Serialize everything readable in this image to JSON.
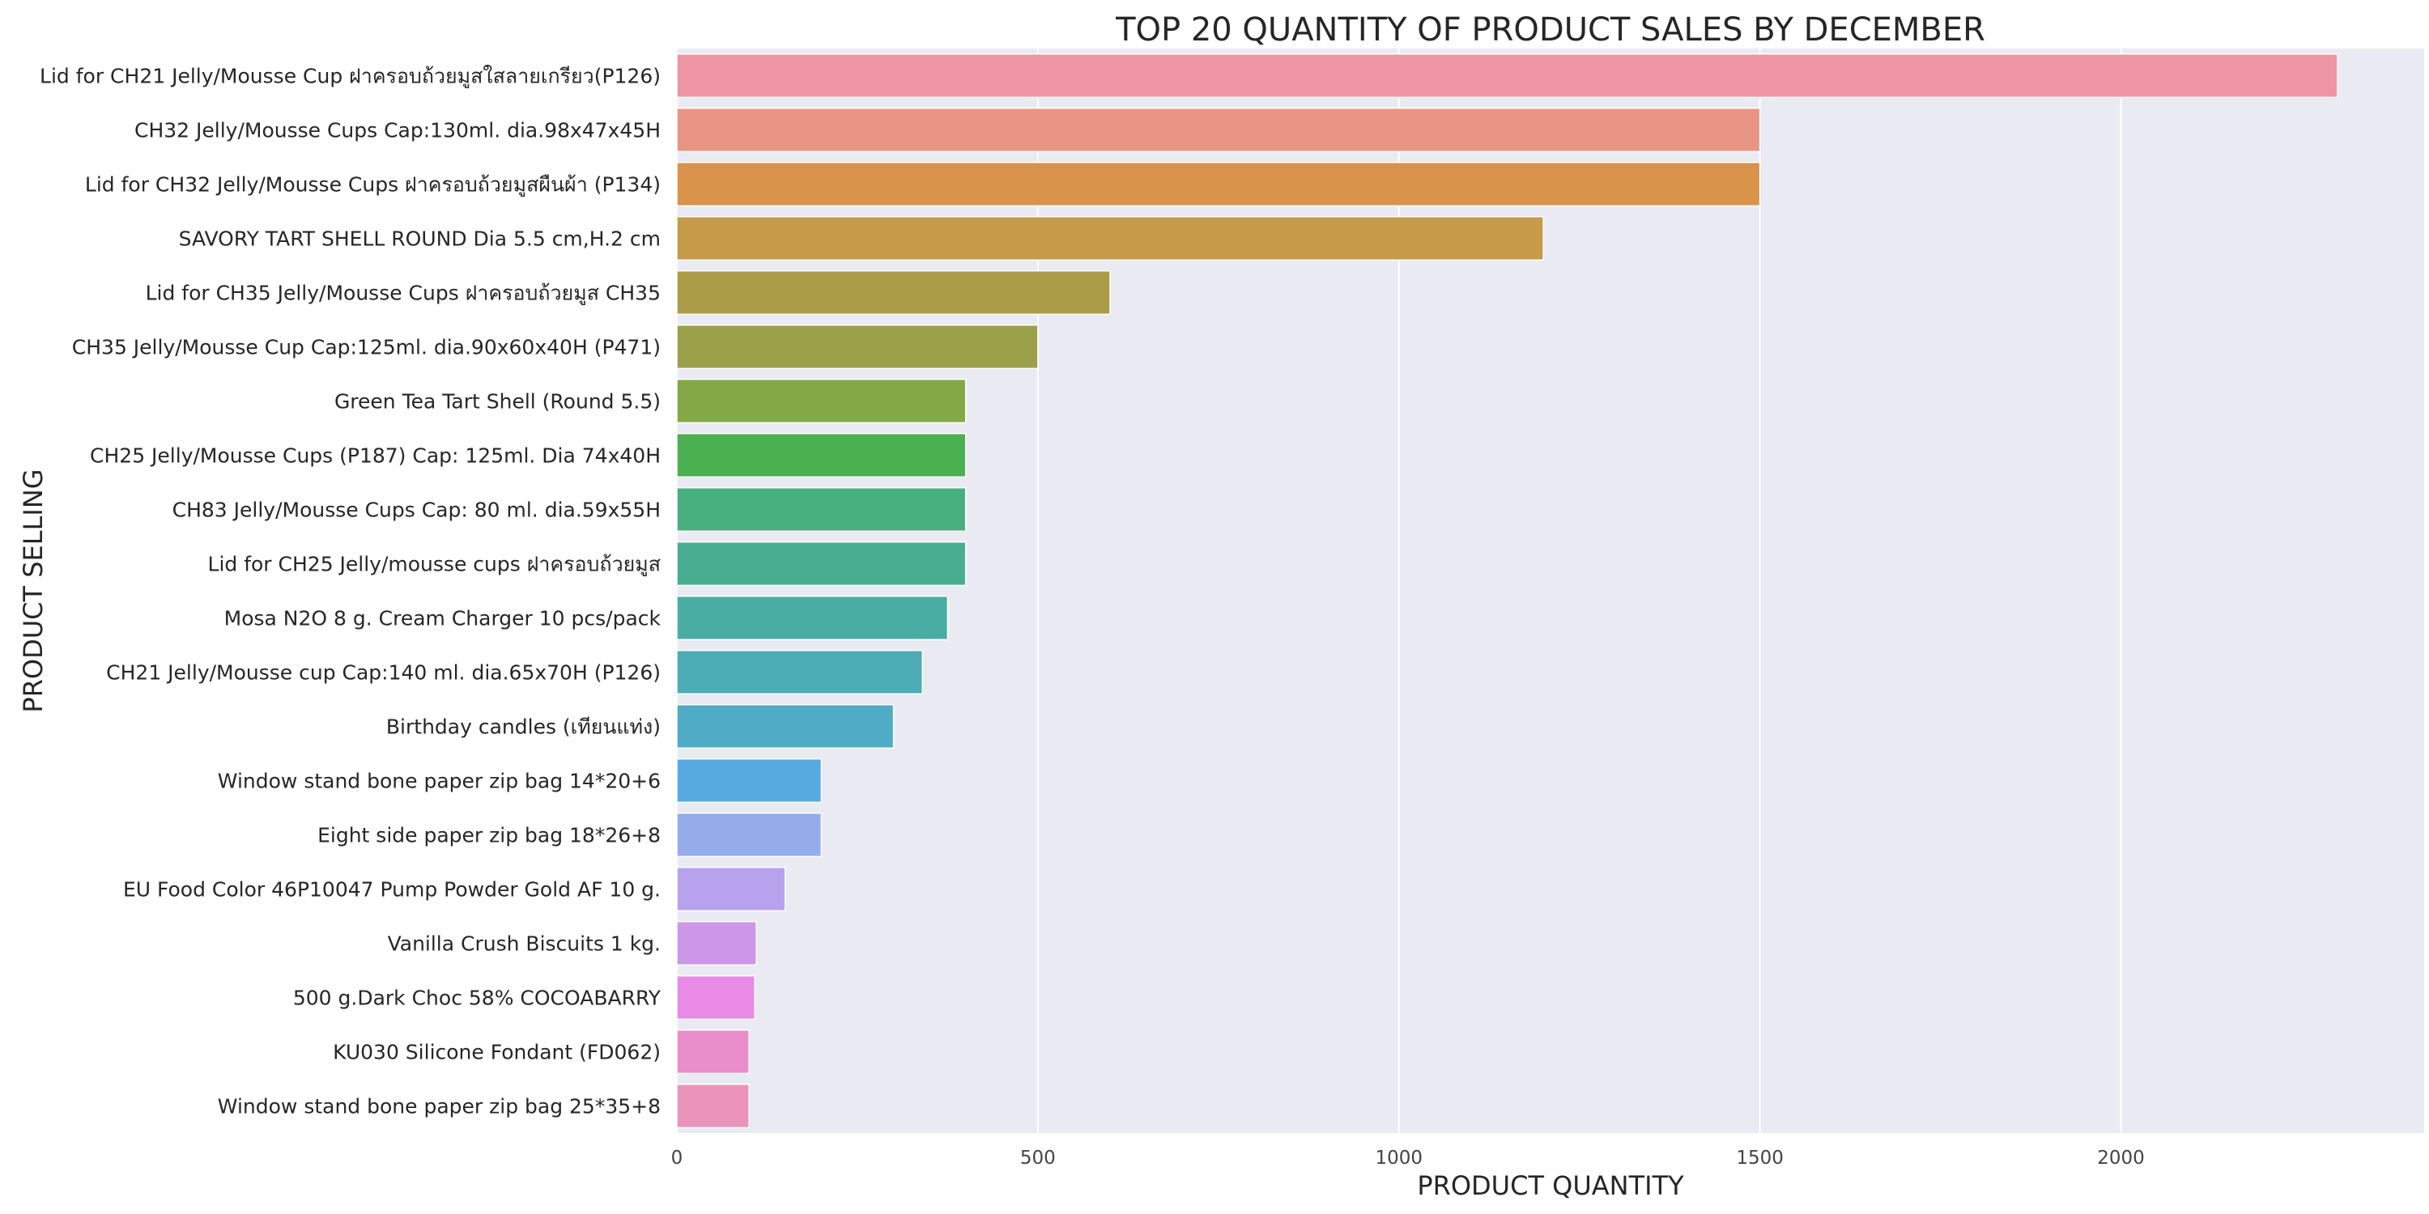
{
  "chart_data": {
    "type": "bar",
    "orientation": "horizontal",
    "title": "TOP 20 QUANTITY OF PRODUCT SALES BY DECEMBER",
    "xlabel": "PRODUCT QUANTITY",
    "ylabel": "PRODUCT SELLING",
    "xlim": [
      0,
      2420
    ],
    "xticks": [
      0,
      500,
      1000,
      1500,
      2000
    ],
    "grid": true,
    "categories": [
      "Lid for CH21 Jelly/Mousse Cup ฝาครอบถ้วยมูสใสลายเกรียว(P126)",
      "CH32 Jelly/Mousse Cups Cap:130ml. dia.98x47x45H",
      "Lid for CH32 Jelly/Mousse Cups ฝาครอบถ้วยมูสผืนผ้า (P134)",
      "SAVORY TART SHELL ROUND Dia 5.5 cm,H.2 cm",
      "Lid for CH35 Jelly/Mousse Cups ฝาครอบถ้วยมูส CH35",
      "CH35 Jelly/Mousse Cup Cap:125ml. dia.90x60x40H (P471)",
      "Green Tea Tart Shell (Round 5.5)",
      "CH25  Jelly/Mousse Cups (P187) Cap: 125ml. Dia 74x40H",
      "CH83 Jelly/Mousse Cups Cap: 80 ml. dia.59x55H",
      "Lid for CH25 Jelly/mousse cups ฝาครอบถ้วยมูส",
      "Mosa N2O 8 g. Cream Charger 10 pcs/pack",
      "CH21  Jelly/Mousse cup Cap:140 ml. dia.65x70H (P126)",
      "Birthday candles (เทียนแท่ง)",
      "Window stand bone paper zip bag 14*20+6",
      "Eight side paper zip bag 18*26+8",
      "EU Food Color 46P10047 Pump Powder Gold AF 10 g.",
      "Vanilla Crush Biscuits 1 kg.",
      "500 g.Dark Choc 58% COCOABARRY",
      "KU030 Silicone Fondant (FD062)",
      "Window stand bone paper zip bag 25*35+8"
    ],
    "values": [
      2300,
      1500,
      1500,
      1200,
      600,
      500,
      400,
      400,
      400,
      400,
      375,
      340,
      300,
      200,
      200,
      150,
      110,
      108,
      100,
      100
    ],
    "colors": [
      "#ee95a3",
      "#e89583",
      "#d8924a",
      "#c59a49",
      "#ab9c47",
      "#9ba149",
      "#82a946",
      "#4bb04f",
      "#48af7f",
      "#49ae91",
      "#49ada3",
      "#4bacb6",
      "#50abc6",
      "#57abe0",
      "#95acea",
      "#b7a3ed",
      "#cd96e8",
      "#e88ae6",
      "#ea8ecb",
      "#ea94b9"
    ]
  }
}
